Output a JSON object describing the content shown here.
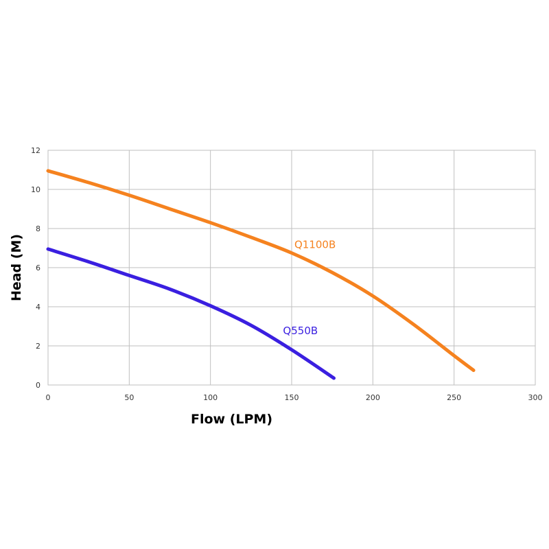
{
  "chart_data": {
    "type": "line",
    "title": "",
    "xlabel": "Flow (LPM)",
    "ylabel": "Head (M)",
    "xlim": [
      0,
      300
    ],
    "ylim": [
      0,
      12
    ],
    "x_ticks": [
      "0",
      "50",
      "100",
      "150",
      "200",
      "250",
      "300"
    ],
    "y_ticks": [
      "0",
      "2",
      "4",
      "6",
      "8",
      "10",
      "12"
    ],
    "grid": true,
    "legend": "none",
    "series": [
      {
        "name": "Q1100B",
        "color": "#f5821f",
        "x": [
          0,
          25,
          50,
          75,
          100,
          125,
          150,
          175,
          200,
          225,
          250,
          262
        ],
        "y": [
          10.95,
          10.35,
          9.7,
          9.0,
          8.3,
          7.55,
          6.75,
          5.75,
          4.55,
          3.1,
          1.5,
          0.75
        ]
      },
      {
        "name": "Q550B",
        "color": "#3a1fe0",
        "x": [
          0,
          25,
          50,
          75,
          100,
          125,
          150,
          176
        ],
        "y": [
          6.95,
          6.3,
          5.6,
          4.9,
          4.05,
          3.05,
          1.8,
          0.35
        ]
      }
    ]
  }
}
